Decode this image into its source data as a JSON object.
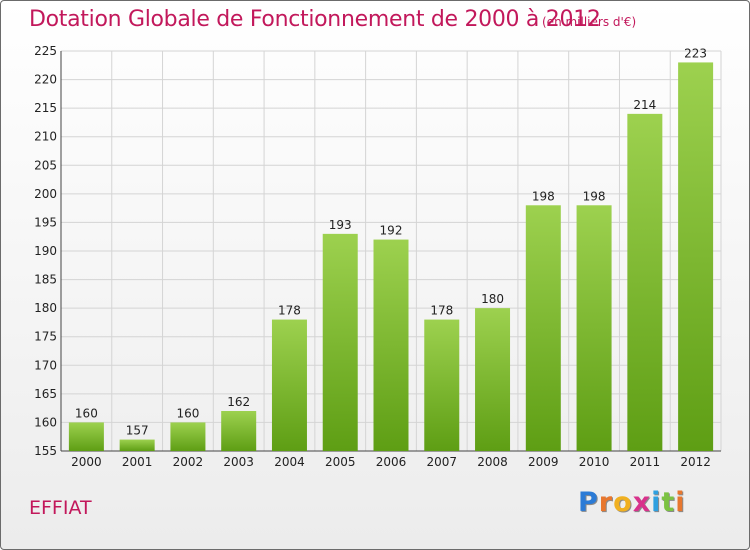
{
  "header": {
    "title": "Dotation Globale de Fonctionnement de 2000 à 2012",
    "subtitle": "(en milliers d'€)"
  },
  "footer": {
    "place": "EFFIAT",
    "logo_letters": [
      {
        "ch": "P",
        "color": "#2b7bd6"
      },
      {
        "ch": "r",
        "color": "#e8772e"
      },
      {
        "ch": "o",
        "color": "#f0b020"
      },
      {
        "ch": "x",
        "color": "#d8328c"
      },
      {
        "ch": "i",
        "color": "#2fa0e0"
      },
      {
        "ch": "t",
        "color": "#7cc242"
      },
      {
        "ch": "i",
        "color": "#e8772e"
      }
    ]
  },
  "chart_data": {
    "type": "bar",
    "categories": [
      "2000",
      "2001",
      "2002",
      "2003",
      "2004",
      "2005",
      "2006",
      "2007",
      "2008",
      "2009",
      "2010",
      "2011",
      "2012"
    ],
    "values": [
      160,
      157,
      160,
      162,
      178,
      193,
      192,
      178,
      180,
      198,
      198,
      214,
      223
    ],
    "title": "Dotation Globale de Fonctionnement de 2000 à 2012",
    "subtitle": "(en milliers d'€)",
    "xlabel": "",
    "ylabel": "",
    "ylim": [
      155,
      225
    ],
    "yticks": [
      155,
      160,
      165,
      170,
      175,
      180,
      185,
      190,
      195,
      200,
      205,
      210,
      215,
      220,
      225
    ],
    "grid": true,
    "legend": "none",
    "bar_color_top": "#9dd14f",
    "bar_color_bottom": "#5e9e14"
  }
}
